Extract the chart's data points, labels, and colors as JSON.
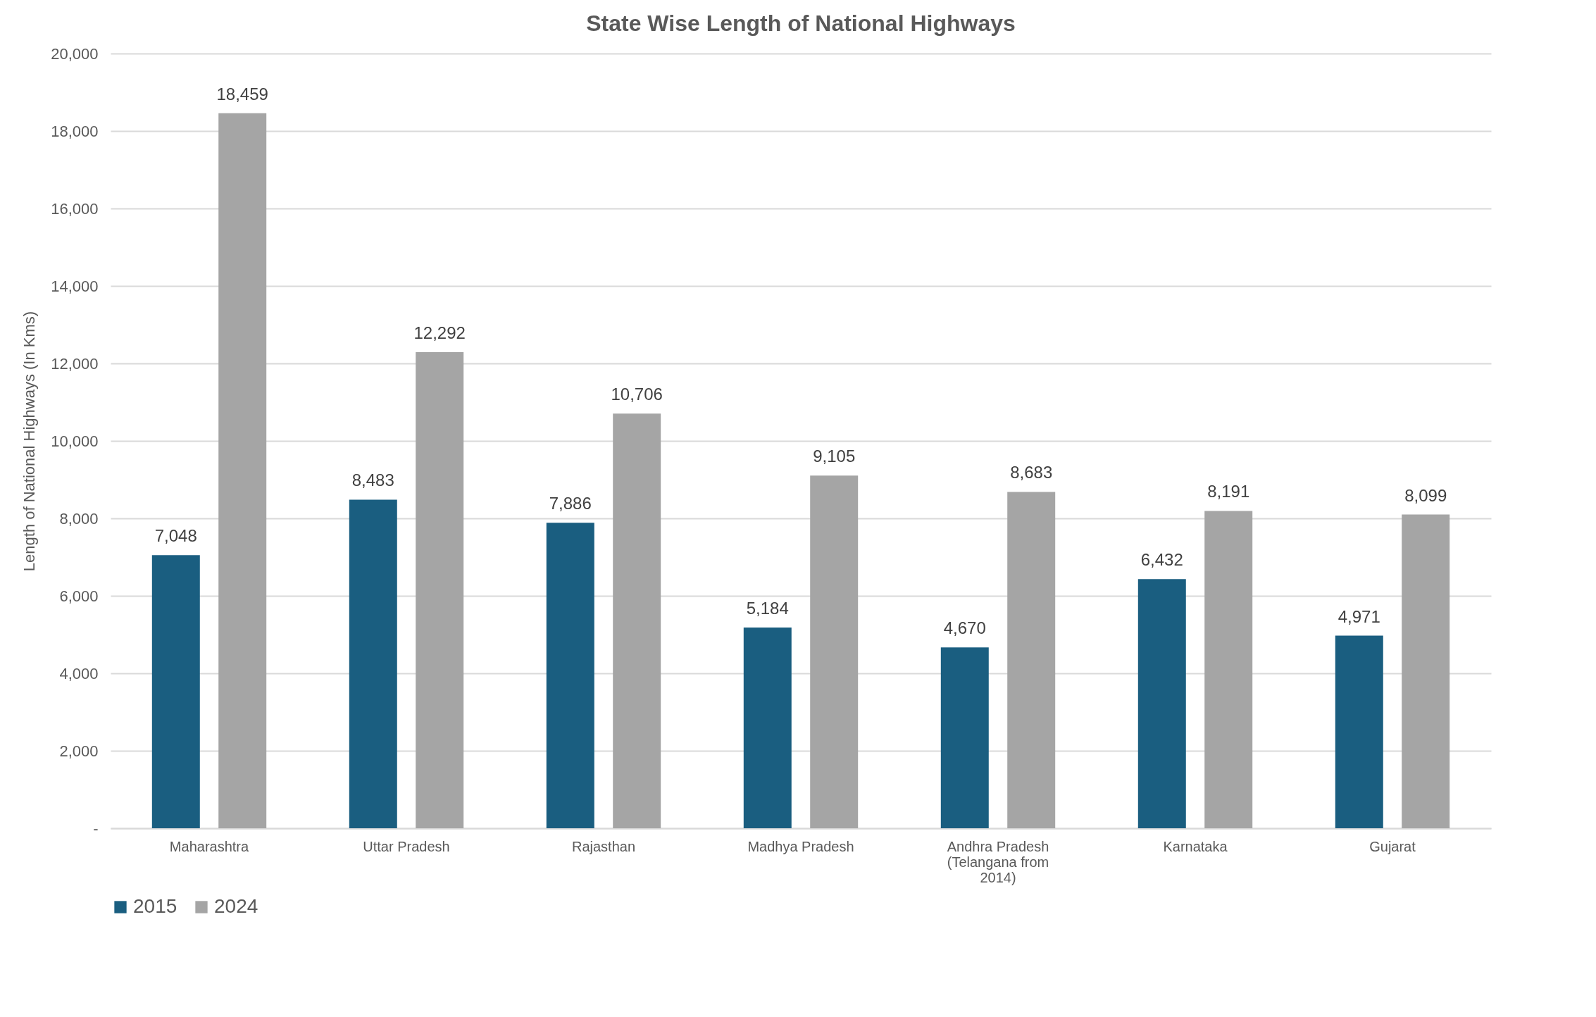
{
  "chart_data": {
    "type": "bar",
    "title": "State Wise Length of National Highways",
    "ylabel": "Length of National Highways (In Kms)",
    "categories": [
      "Maharashtra",
      "Uttar Pradesh",
      "Rajasthan",
      "Madhya Pradesh",
      "Andhra Pradesh (Telangana from 2014)",
      "Karnataka",
      "Gujarat"
    ],
    "series": [
      {
        "name": "2015",
        "color": "#1a5e80",
        "values": [
          7048,
          8483,
          7886,
          5184,
          4670,
          6432,
          4971
        ],
        "value_labels": [
          "7,048",
          "8,483",
          "7,886",
          "5,184",
          "4,670",
          "6,432",
          "4,971"
        ]
      },
      {
        "name": "2024",
        "color": "#a5a5a5",
        "values": [
          18459,
          12292,
          10706,
          9105,
          8683,
          8191,
          8099
        ],
        "value_labels": [
          "18,459",
          "12,292",
          "10,706",
          "9,105",
          "8,683",
          "8,191",
          "8,099"
        ]
      }
    ],
    "ylim": [
      0,
      20000
    ],
    "yticks": [
      {
        "value": 0,
        "label": "-"
      },
      {
        "value": 2000,
        "label": "2,000"
      },
      {
        "value": 4000,
        "label": "4,000"
      },
      {
        "value": 6000,
        "label": "6,000"
      },
      {
        "value": 8000,
        "label": "8,000"
      },
      {
        "value": 10000,
        "label": "10,000"
      },
      {
        "value": 12000,
        "label": "12,000"
      },
      {
        "value": 14000,
        "label": "14,000"
      },
      {
        "value": 16000,
        "label": "16,000"
      },
      {
        "value": 18000,
        "label": "18,000"
      },
      {
        "value": 20000,
        "label": "20,000"
      }
    ],
    "grid": "y",
    "legend": "bottom"
  }
}
